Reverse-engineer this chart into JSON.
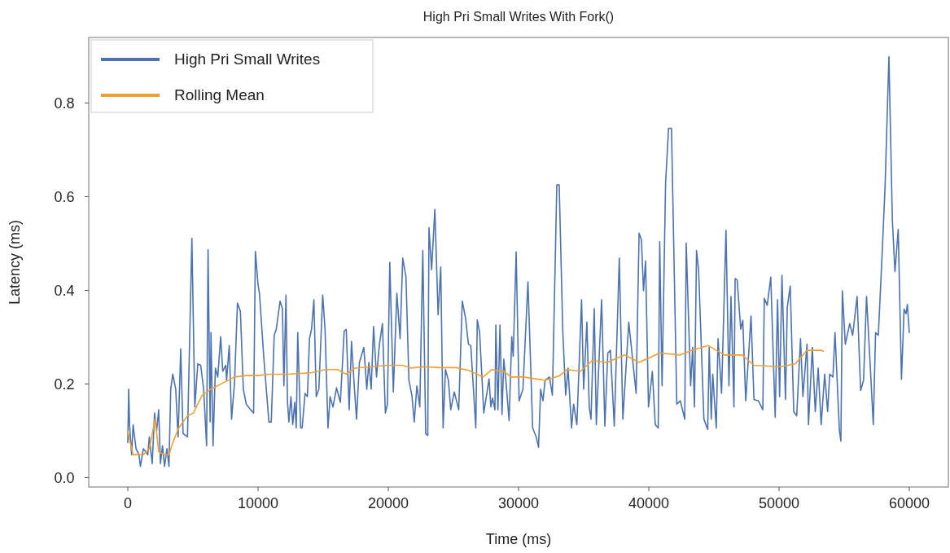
{
  "chart_data": {
    "type": "line",
    "title": "High Pri Small Writes With Fork()",
    "xlabel": "Time (ms)",
    "ylabel": "Latency (ms)",
    "xlim": [
      -3000,
      63000
    ],
    "ylim": [
      -0.02,
      0.94
    ],
    "xticks": [
      0,
      10000,
      20000,
      30000,
      40000,
      50000,
      60000
    ],
    "yticks": [
      {
        "value": 0,
        "label": "0.0"
      },
      0.2,
      0.4,
      0.6,
      0.8
    ],
    "legend": "top left",
    "grid": false,
    "series": [
      {
        "name": "High Pri Small Writes",
        "color": "#4c72b0",
        "x": [
          0,
          68,
          135,
          293,
          406,
          632,
          858,
          970,
          1196,
          1535,
          1648,
          1873,
          2054,
          2212,
          2370,
          2505,
          2663,
          2821,
          3002,
          3160,
          3295,
          3453,
          3679,
          3860,
          4063,
          4243,
          4582,
          4920,
          5146,
          5372,
          5597,
          5823,
          6049,
          6162,
          6320,
          6387,
          6545,
          6726,
          6906,
          7132,
          7290,
          7516,
          7584,
          7787,
          7967,
          8193,
          8419,
          8644,
          8870,
          9096,
          9434,
          9660,
          9795,
          10000,
          10111,
          10450,
          10834,
          11014,
          11240,
          11398,
          11691,
          11872,
          11985,
          12143,
          12256,
          12368,
          12526,
          12662,
          12820,
          12933,
          13046,
          13271,
          13384,
          13610,
          13790,
          13948,
          14106,
          14287,
          14467,
          14670,
          14964,
          15144,
          15370,
          15528,
          15754,
          16025,
          16318,
          16612,
          16770,
          16996,
          17176,
          17402,
          17560,
          17783,
          18123,
          18349,
          18507,
          18688,
          18869,
          19095,
          19321,
          19548,
          19774,
          19932,
          20113,
          20385,
          20656,
          20905,
          21108,
          21357,
          21583,
          21810,
          21991,
          22194,
          22420,
          22647,
          22873,
          23031,
          23122,
          23325,
          23574,
          23823,
          24026,
          24207,
          24388,
          24614,
          24795,
          25067,
          25406,
          25678,
          25926,
          26153,
          26334,
          26718,
          26831,
          27012,
          27329,
          27736,
          27872,
          28007,
          28188,
          28256,
          28415,
          28573,
          28731,
          28867,
          29026,
          29274,
          29478,
          29591,
          29817,
          30043,
          30337,
          30722,
          31084,
          31355,
          31536,
          31695,
          31876,
          32034,
          32373,
          32599,
          32938,
          33120,
          33391,
          33617,
          33798,
          34070,
          34228,
          34477,
          34839,
          34997,
          35246,
          35427,
          35563,
          35812,
          35970,
          36377,
          36626,
          36852,
          37055,
          37349,
          37734,
          38009,
          38462,
          39027,
          39254,
          39434,
          39593,
          39751,
          39977,
          40271,
          40498,
          40724,
          40837,
          41018,
          41289,
          41516,
          41742,
          42149,
          42420,
          42760,
          42873,
          43212,
          43370,
          43506,
          43664,
          43823,
          44230,
          44524,
          44637,
          44795,
          44908,
          45180,
          45316,
          45587,
          45926,
          46153,
          46311,
          46537,
          46628,
          46786,
          47057,
          47216,
          47442,
          47849,
          48075,
          48414,
          48754,
          48867,
          49093,
          49365,
          49704,
          49885,
          50043,
          50224,
          50496,
          50631,
          50858,
          51129,
          51355,
          51649,
          51830,
          52147,
          52260,
          52554,
          52780,
          53006,
          53233,
          53504,
          53730,
          53889,
          54138,
          54296,
          54635,
          54748,
          54861,
          55088,
          55427,
          55653,
          55992,
          56264,
          56490,
          56716,
          57010,
          57236,
          57411,
          57621,
          57915,
          58141,
          58435,
          58700,
          58900,
          59150,
          59400,
          59600,
          59750,
          59850,
          60000
        ],
        "values": [
          0.075,
          0.189,
          0.113,
          0.049,
          0.113,
          0.062,
          0.049,
          0.024,
          0.062,
          0.049,
          0.087,
          0.03,
          0.138,
          0.1,
          0.145,
          0.03,
          0.068,
          0.024,
          0.062,
          0.024,
          0.189,
          0.221,
          0.189,
          0.087,
          0.275,
          0.094,
          0.087,
          0.511,
          0.151,
          0.243,
          0.24,
          0.189,
          0.068,
          0.487,
          0.119,
          0.31,
          0.068,
          0.234,
          0.215,
          0.301,
          0.227,
          0.24,
          0.208,
          0.282,
          0.125,
          0.202,
          0.373,
          0.355,
          0.189,
          0.157,
          0.145,
          0.138,
          0.483,
          0.412,
          0.393,
          0.253,
          0.119,
          0.119,
          0.304,
          0.317,
          0.377,
          0.361,
          0.196,
          0.39,
          0.164,
          0.119,
          0.173,
          0.113,
          0.161,
          0.106,
          0.31,
          0.106,
          0.106,
          0.18,
          0.173,
          0.297,
          0.317,
          0.38,
          0.173,
          0.189,
          0.39,
          0.317,
          0.106,
          0.173,
          0.151,
          0.192,
          0.161,
          0.313,
          0.317,
          0.145,
          0.291,
          0.189,
          0.125,
          0.246,
          0.278,
          0.189,
          0.246,
          0.189,
          0.323,
          0.215,
          0.285,
          0.329,
          0.138,
          0.157,
          0.46,
          0.183,
          0.394,
          0.297,
          0.469,
          0.428,
          0.208,
          0.176,
          0.119,
          0.196,
          0.151,
          0.485,
          0.094,
          0.09,
          0.534,
          0.444,
          0.573,
          0.348,
          0.45,
          0.106,
          0.231,
          0.208,
          0.145,
          0.183,
          0.145,
          0.377,
          0.342,
          0.285,
          0.282,
          0.106,
          0.337,
          0.31,
          0.138,
          0.211,
          0.151,
          0.17,
          0.145,
          0.326,
          0.145,
          0.326,
          0.135,
          0.253,
          0.208,
          0.122,
          0.301,
          0.259,
          0.482,
          0.164,
          0.189,
          0.418,
          0.106,
          0.087,
          0.065,
          0.189,
          0.164,
          0.208,
          0.215,
          0.176,
          0.625,
          0.625,
          0.317,
          0.176,
          0.234,
          0.106,
          0.157,
          0.113,
          0.38,
          0.189,
          0.332,
          0.151,
          0.125,
          0.361,
          0.113,
          0.38,
          0.11,
          0.266,
          0.272,
          0.11,
          0.469,
          0.125,
          0.332,
          0.18,
          0.522,
          0.508,
          0.399,
          0.463,
          0.151,
          0.227,
          0.113,
          0.106,
          0.504,
          0.196,
          0.629,
          0.746,
          0.746,
          0.157,
          0.164,
          0.125,
          0.501,
          0.196,
          0.278,
          0.151,
          0.485,
          0.444,
          0.125,
          0.103,
          0.278,
          0.125,
          0.221,
          0.106,
          0.297,
          0.18,
          0.528,
          0.196,
          0.387,
          0.151,
          0.425,
          0.422,
          0.317,
          0.336,
          0.164,
          0.345,
          0.167,
          0.164,
          0.145,
          0.383,
          0.368,
          0.428,
          0.129,
          0.38,
          0.173,
          0.432,
          0.167,
          0.364,
          0.409,
          0.141,
          0.132,
          0.297,
          0.173,
          0.285,
          0.113,
          0.278,
          0.141,
          0.234,
          0.113,
          0.221,
          0.141,
          0.221,
          0.215,
          0.31,
          0.1,
          0.078,
          0.399,
          0.285,
          0.329,
          0.304,
          0.387,
          0.186,
          0.208,
          0.387,
          0.234,
          0.113,
          0.31,
          0.304,
          0.478,
          0.622,
          0.899,
          0.55,
          0.44,
          0.53,
          0.21,
          0.36,
          0.35,
          0.37,
          0.31
        ]
      },
      {
        "name": "Rolling Mean",
        "color": "#f0a030",
        "x": [
          0,
          181,
          406,
          745,
          1196,
          1648,
          2099,
          2370,
          2776,
          3160,
          3453,
          3905,
          4582,
          5033,
          5710,
          6387,
          7290,
          8193,
          9096,
          10000,
          10901,
          12256,
          14061,
          15190,
          16093,
          16770,
          17447,
          19955,
          21085,
          21764,
          22647,
          24026,
          25248,
          26153,
          27284,
          27962,
          28867,
          29433,
          30337,
          32034,
          33165,
          33730,
          34748,
          35653,
          36784,
          38141,
          38801,
          39254,
          40837,
          42420,
          43325,
          44569,
          45813,
          47170,
          48075,
          50111,
          51242,
          52147,
          53278,
          53391
        ],
        "values": [
          0.1,
          0.075,
          0.049,
          0.049,
          0.049,
          0.062,
          0.125,
          0.055,
          0.049,
          0.049,
          0.075,
          0.106,
          0.132,
          0.138,
          0.176,
          0.189,
          0.202,
          0.215,
          0.218,
          0.218,
          0.221,
          0.221,
          0.224,
          0.231,
          0.231,
          0.221,
          0.234,
          0.24,
          0.24,
          0.234,
          0.237,
          0.235,
          0.235,
          0.229,
          0.215,
          0.231,
          0.227,
          0.215,
          0.215,
          0.208,
          0.218,
          0.231,
          0.227,
          0.25,
          0.246,
          0.262,
          0.253,
          0.246,
          0.266,
          0.262,
          0.272,
          0.282,
          0.262,
          0.262,
          0.24,
          0.237,
          0.243,
          0.272,
          0.272,
          0.27
        ]
      }
    ]
  }
}
